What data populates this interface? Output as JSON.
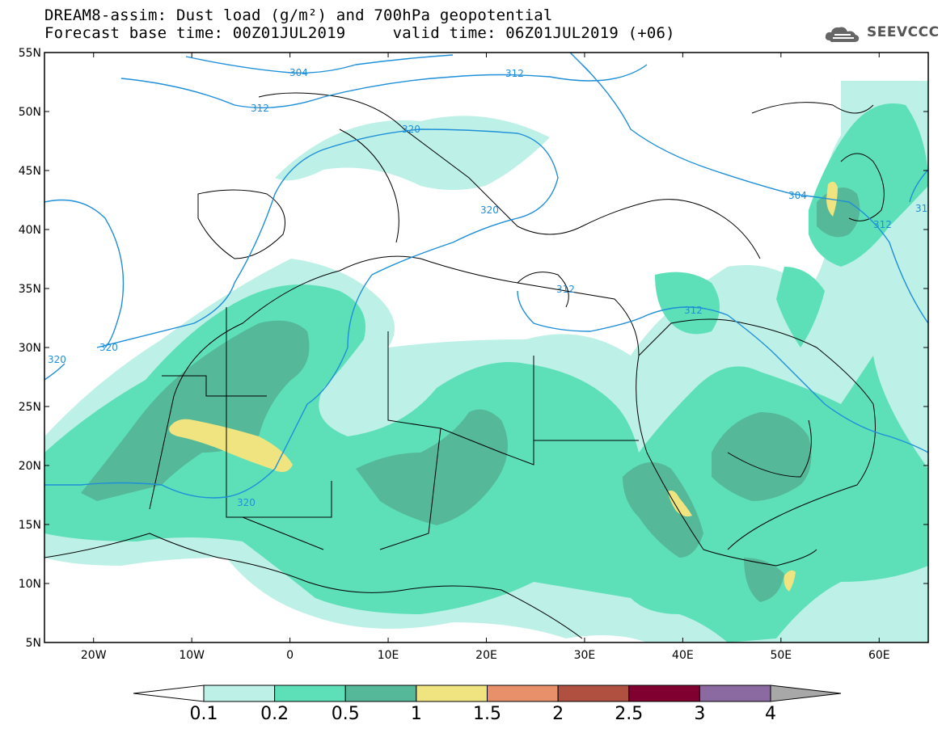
{
  "title": {
    "line1": "DREAM8-assim: Dust load (g/m²) and 700hPa geopotential",
    "line2": "Forecast base time: 00Z01JUL2019     valid time: 06Z01JUL2019 (+06)"
  },
  "logo": {
    "text": "SEEVCCC",
    "icon": "cloud-logo-icon"
  },
  "axes": {
    "lat_labels": [
      "55N",
      "50N",
      "45N",
      "40N",
      "35N",
      "30N",
      "25N",
      "20N",
      "15N",
      "10N",
      "5N"
    ],
    "lon_labels": [
      "20W",
      "10W",
      "0",
      "10E",
      "20E",
      "30E",
      "40E",
      "50E",
      "60E"
    ],
    "lon_range": [
      -25,
      65
    ],
    "lat_range": [
      5,
      55
    ]
  },
  "contour_labels": [
    "304",
    "312",
    "312",
    "320",
    "320",
    "312",
    "312",
    "304",
    "312",
    "31",
    "320",
    "320",
    "320"
  ],
  "colorbar": {
    "ticks": [
      "0.1",
      "0.2",
      "0.5",
      "1",
      "1.5",
      "2",
      "2.5",
      "3",
      "4"
    ],
    "colors": [
      "#ffffff",
      "#bdf0e6",
      "#5de0b8",
      "#55b898",
      "#f0e480",
      "#e8906a",
      "#b05040",
      "#800030",
      "#8a6aa0",
      "#a8a8a8"
    ]
  },
  "colors": {
    "light_dust": "#bdf0e6",
    "medium_dust": "#5de0b8",
    "dark_dust": "#55b898",
    "high_dust": "#f0e480",
    "contour": "#1e8fd8",
    "coast": "#000000"
  }
}
